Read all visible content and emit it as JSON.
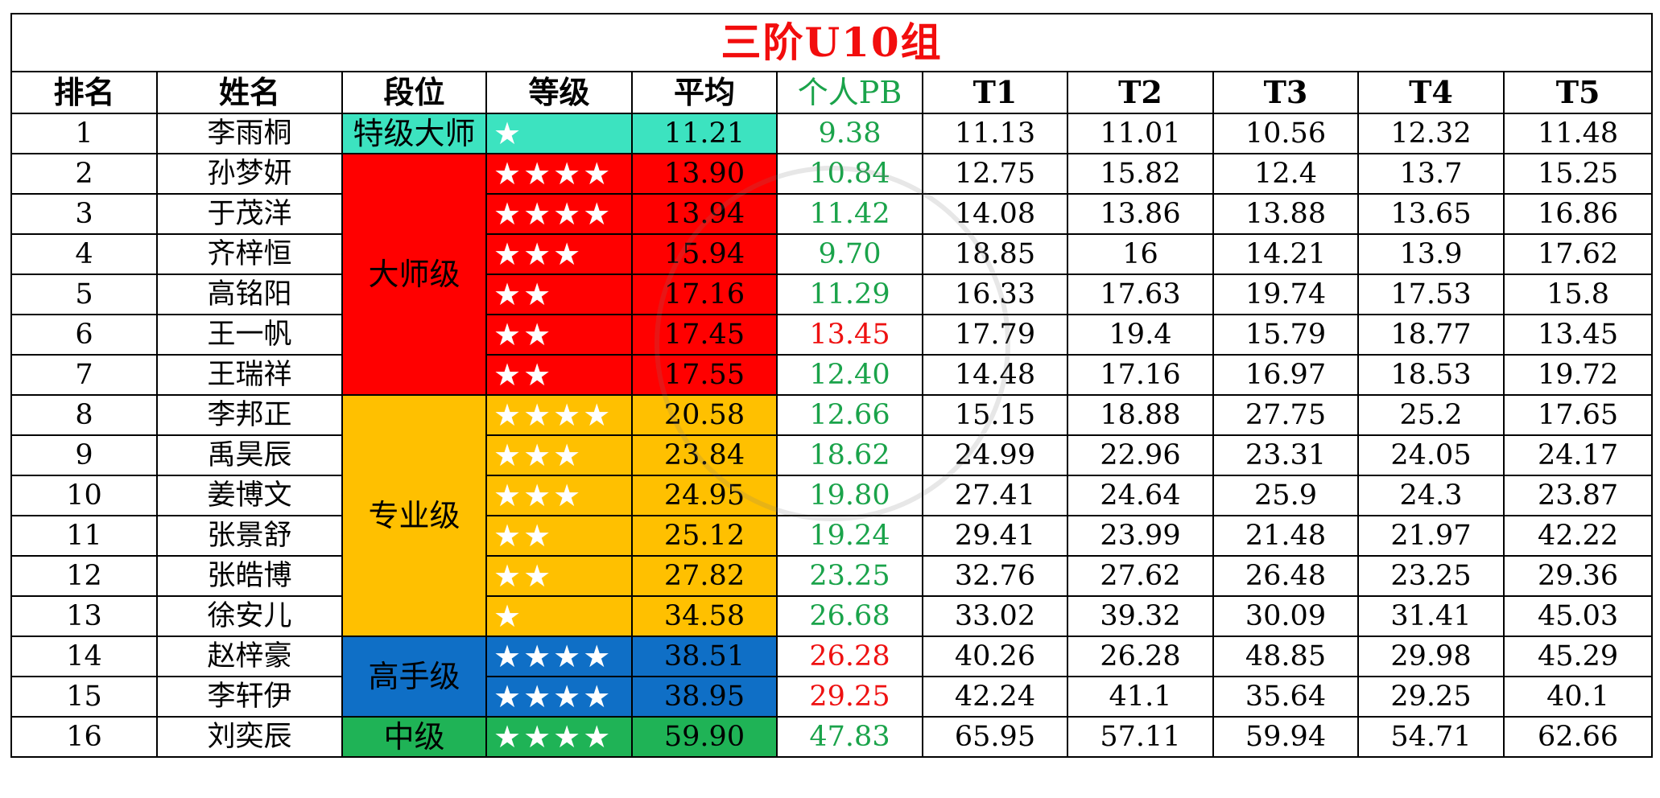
{
  "title": "三阶U10组",
  "headers": [
    "排名",
    "姓名",
    "段位",
    "等级",
    "平均",
    "个人PB",
    "T1",
    "T2",
    "T3",
    "T4",
    "T5"
  ],
  "colors": {
    "teal": "#3ce3c0",
    "red": "#ff0000",
    "amber": "#ffc000",
    "blue": "#0f6fc6",
    "green": "#1fb356",
    "pb_green": "#1aa34a",
    "pb_red": "#ee1111"
  },
  "ranks": [
    {
      "name": "特级大师",
      "color": "teal"
    },
    {
      "name": "大师级",
      "color": "red"
    },
    {
      "name": "专业级",
      "color": "amber"
    },
    {
      "name": "高手级",
      "color": "blue"
    },
    {
      "name": "中级",
      "color": "green"
    }
  ],
  "rows": [
    {
      "rank": "1",
      "name": "李雨桐",
      "stars": "★",
      "avg": "11.21",
      "pb": "9.38",
      "pb_red": false,
      "t1": "11.13",
      "t2": "11.01",
      "t3": "10.56",
      "t4": "12.32",
      "t5": "11.48"
    },
    {
      "rank": "2",
      "name": "孙梦妍",
      "stars": "★★★★",
      "avg": "13.90",
      "pb": "10.84",
      "pb_red": false,
      "t1": "12.75",
      "t2": "15.82",
      "t3": "12.4",
      "t4": "13.7",
      "t5": "15.25"
    },
    {
      "rank": "3",
      "name": "于茂洋",
      "stars": "★★★★",
      "avg": "13.94",
      "pb": "11.42",
      "pb_red": false,
      "t1": "14.08",
      "t2": "13.86",
      "t3": "13.88",
      "t4": "13.65",
      "t5": "16.86"
    },
    {
      "rank": "4",
      "name": "齐梓恒",
      "stars": "★★★",
      "avg": "15.94",
      "pb": "9.70",
      "pb_red": false,
      "t1": "18.85",
      "t2": "16",
      "t3": "14.21",
      "t4": "13.9",
      "t5": "17.62"
    },
    {
      "rank": "5",
      "name": "高铭阳",
      "stars": "★★",
      "avg": "17.16",
      "pb": "11.29",
      "pb_red": false,
      "t1": "16.33",
      "t2": "17.63",
      "t3": "19.74",
      "t4": "17.53",
      "t5": "15.8"
    },
    {
      "rank": "6",
      "name": "王一帆",
      "stars": "★★",
      "avg": "17.45",
      "pb": "13.45",
      "pb_red": true,
      "t1": "17.79",
      "t2": "19.4",
      "t3": "15.79",
      "t4": "18.77",
      "t5": "13.45"
    },
    {
      "rank": "7",
      "name": "王瑞祥",
      "stars": "★★",
      "avg": "17.55",
      "pb": "12.40",
      "pb_red": false,
      "t1": "14.48",
      "t2": "17.16",
      "t3": "16.97",
      "t4": "18.53",
      "t5": "19.72"
    },
    {
      "rank": "8",
      "name": "李邦正",
      "stars": "★★★★",
      "avg": "20.58",
      "pb": "12.66",
      "pb_red": false,
      "t1": "15.15",
      "t2": "18.88",
      "t3": "27.75",
      "t4": "25.2",
      "t5": "17.65"
    },
    {
      "rank": "9",
      "name": "禹昊辰",
      "stars": "★★★",
      "avg": "23.84",
      "pb": "18.62",
      "pb_red": false,
      "t1": "24.99",
      "t2": "22.96",
      "t3": "23.31",
      "t4": "24.05",
      "t5": "24.17"
    },
    {
      "rank": "10",
      "name": "姜博文",
      "stars": "★★★",
      "avg": "24.95",
      "pb": "19.80",
      "pb_red": false,
      "t1": "27.41",
      "t2": "24.64",
      "t3": "25.9",
      "t4": "24.3",
      "t5": "23.87"
    },
    {
      "rank": "11",
      "name": "张景舒",
      "stars": "★★",
      "avg": "25.12",
      "pb": "19.24",
      "pb_red": false,
      "t1": "29.41",
      "t2": "23.99",
      "t3": "21.48",
      "t4": "21.97",
      "t5": "42.22"
    },
    {
      "rank": "12",
      "name": "张皓博",
      "stars": "★★",
      "avg": "27.82",
      "pb": "23.25",
      "pb_red": false,
      "t1": "32.76",
      "t2": "27.62",
      "t3": "26.48",
      "t4": "23.25",
      "t5": "29.36"
    },
    {
      "rank": "13",
      "name": "徐安儿",
      "stars": "★",
      "avg": "34.58",
      "pb": "26.68",
      "pb_red": false,
      "t1": "33.02",
      "t2": "39.32",
      "t3": "30.09",
      "t4": "31.41",
      "t5": "45.03"
    },
    {
      "rank": "14",
      "name": "赵梓豪",
      "stars": "★★★★",
      "avg": "38.51",
      "pb": "26.28",
      "pb_red": true,
      "t1": "40.26",
      "t2": "26.28",
      "t3": "48.85",
      "t4": "29.98",
      "t5": "45.29"
    },
    {
      "rank": "15",
      "name": "李轩伊",
      "stars": "★★★★",
      "avg": "38.95",
      "pb": "29.25",
      "pb_red": true,
      "t1": "42.24",
      "t2": "41.1",
      "t3": "35.64",
      "t4": "29.25",
      "t5": "40.1"
    },
    {
      "rank": "16",
      "name": "刘奕辰",
      "stars": "★★★★",
      "avg": "59.90",
      "pb": "47.83",
      "pb_red": false,
      "t1": "65.95",
      "t2": "57.11",
      "t3": "59.94",
      "t4": "54.71",
      "t5": "62.66"
    }
  ]
}
